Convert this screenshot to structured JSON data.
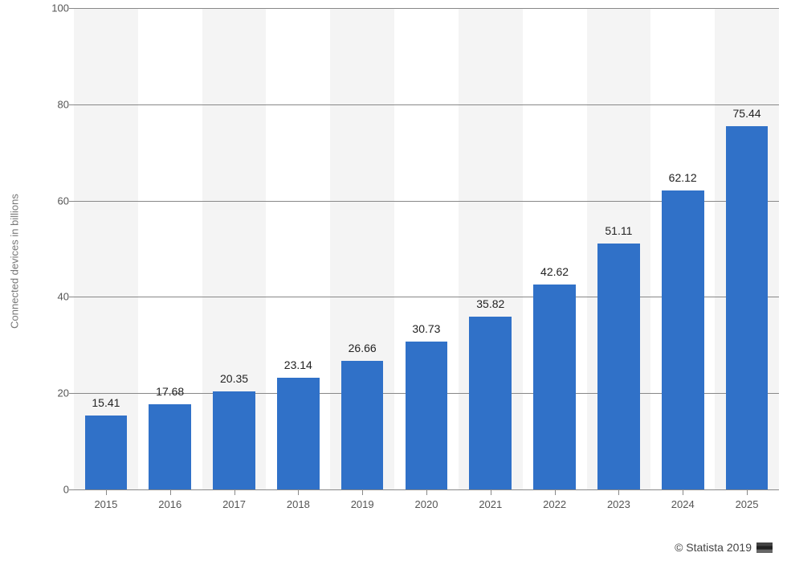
{
  "chart": {
    "type": "bar",
    "y_axis_label": "Connected devices in billions",
    "categories": [
      "2015",
      "2016",
      "2017",
      "2018",
      "2019",
      "2020",
      "2021",
      "2022",
      "2023",
      "2024",
      "2025"
    ],
    "values": [
      15.41,
      17.68,
      20.35,
      23.14,
      26.66,
      30.73,
      35.82,
      42.62,
      51.11,
      62.12,
      75.44
    ],
    "value_labels": [
      "15.41",
      "17.68",
      "20.35",
      "23.14",
      "26.66",
      "30.73",
      "35.82",
      "42.62",
      "51.11",
      "62.12",
      "75.44"
    ],
    "bar_color": "#3071c8",
    "ylim": [
      0,
      100
    ],
    "ytick_step": 20,
    "y_ticks": [
      "0",
      "20",
      "40",
      "60",
      "80",
      "100"
    ],
    "band_color_alt": "#f4f4f4",
    "band_color": "#ffffff",
    "grid_color": "#888888",
    "background_color": "#ffffff",
    "label_fontsize": 14,
    "axis_fontsize": 13,
    "axis_text_color": "#555555",
    "bar_width_ratio": 0.66
  },
  "attribution": {
    "text": "© Statista 2019",
    "icon": "flag-icon"
  }
}
